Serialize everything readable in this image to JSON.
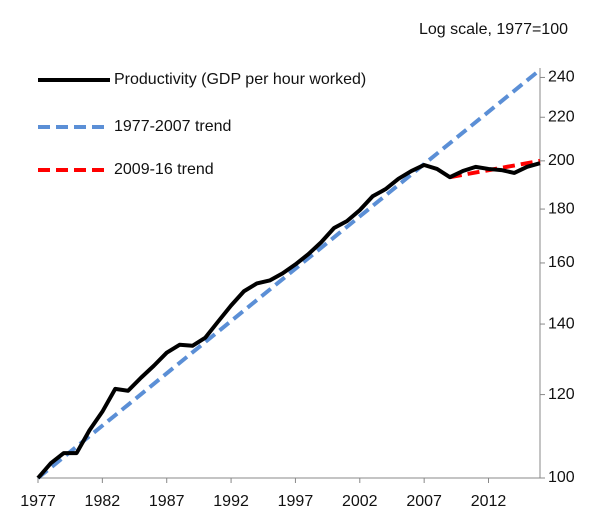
{
  "chart_data": {
    "type": "line",
    "annotation": "Log scale,  1977=100",
    "log_y": true,
    "y_axis_side": "right",
    "legend": "top-left",
    "xlim": [
      1977,
      2016
    ],
    "xticks": [
      1977,
      1982,
      1987,
      1992,
      1997,
      2002,
      2007,
      2012
    ],
    "ylim": [
      100,
      245
    ],
    "yticks": [
      100,
      120,
      140,
      160,
      180,
      200,
      220,
      240
    ],
    "series": [
      {
        "name": "Productivity (GDP per hour worked)",
        "color": "#000000",
        "style": "solid",
        "x": [
          1977,
          1978,
          1979,
          1980,
          1981,
          1982,
          1983,
          1984,
          1985,
          1986,
          1987,
          1988,
          1989,
          1990,
          1991,
          1992,
          1993,
          1994,
          1995,
          1996,
          1997,
          1998,
          1999,
          2000,
          2001,
          2002,
          2003,
          2004,
          2005,
          2006,
          2007,
          2008,
          2009,
          2010,
          2011,
          2012,
          2013,
          2014,
          2015,
          2016
        ],
        "values": [
          100,
          103.3,
          105.6,
          105.6,
          111,
          115.6,
          121.5,
          121,
          124.5,
          127.8,
          131.5,
          133.8,
          133.5,
          135.9,
          140.8,
          145.8,
          150.4,
          153,
          154,
          156.4,
          159.5,
          163.1,
          167.4,
          172.7,
          175.3,
          179.6,
          185.1,
          188,
          192.3,
          195.6,
          198.2,
          196.5,
          193,
          195.6,
          197.4,
          196.5,
          196,
          194.8,
          197.4,
          199
        ]
      },
      {
        "name": "1977-2007 trend",
        "color": "#5b8fd6",
        "style": "dashed",
        "x": [
          1977,
          2016
        ],
        "values": [
          100,
          244
        ]
      },
      {
        "name": "2009-16 trend",
        "color": "#ff0000",
        "style": "dashed",
        "x": [
          2009,
          2016
        ],
        "values": [
          193,
          200
        ]
      }
    ]
  }
}
